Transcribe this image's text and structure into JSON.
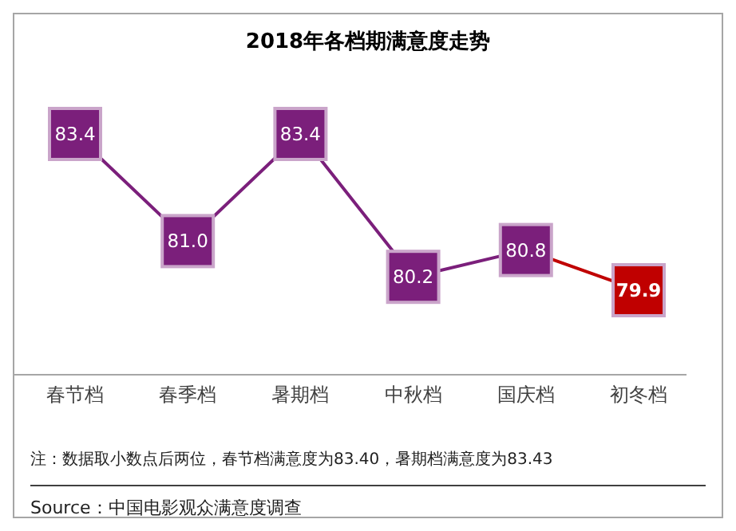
{
  "chart_data": {
    "type": "line",
    "title": "2018年各档期满意度走势",
    "categories": [
      "春节档",
      "春季档",
      "暑期档",
      "中秋档",
      "国庆档",
      "初冬档"
    ],
    "series": [
      {
        "color": "#7b1f7b",
        "colors": [
          "#7b1f7b",
          "#7b1f7b",
          "#7b1f7b",
          "#7b1f7b",
          "#7b1f7b",
          "#c00000"
        ],
        "values": [
          83.4,
          81.0,
          83.4,
          80.2,
          80.8,
          79.9
        ],
        "value_labels": [
          "83.4",
          "81.0",
          "83.4",
          "80.2",
          "80.8",
          "79.9"
        ]
      }
    ],
    "tick_labels": "x",
    "marker": "square",
    "annotations": [
      "注：数据取小数点后两位，春节档满意度为83.40，暑期档满意度为83.43",
      "Source：中国电影观众满意度调查"
    ]
  }
}
